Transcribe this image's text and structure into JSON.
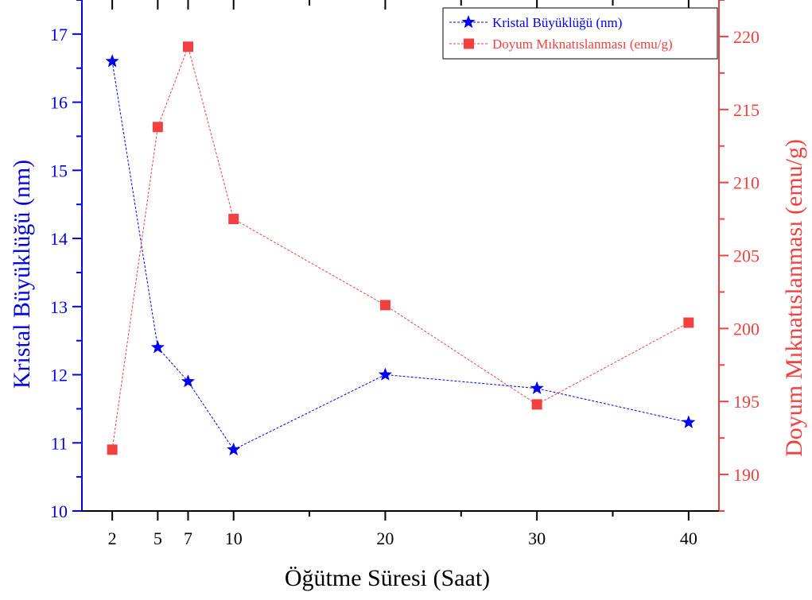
{
  "chart_data": {
    "type": "line",
    "title": "",
    "xlabel": "Öğütme Süresi (Saat)",
    "ylabel_left": "Kristal Büyüklüğü (nm)",
    "ylabel_right": "Doyum Mıknatıslanması (emu/g)",
    "x_ticks": [
      2,
      5,
      7,
      10,
      20,
      30,
      40
    ],
    "x_tick_labels": [
      "2",
      "5",
      "7",
      "10",
      "20",
      "30",
      "40"
    ],
    "xlim": [
      0,
      42
    ],
    "ylim_left": [
      10,
      17.5
    ],
    "ylim_right": [
      187.5,
      222.5
    ],
    "left_ticks": [
      "10",
      "11",
      "12",
      "13",
      "14",
      "15",
      "16",
      "17"
    ],
    "right_ticks": [
      "190",
      "195",
      "200",
      "205",
      "210",
      "215",
      "220"
    ],
    "legend_position": "top-right",
    "series": [
      {
        "name": "Kristal Büyüklüğü (nm)",
        "axis": "left",
        "marker": "star",
        "color": "#0000ee",
        "x": [
          2,
          5,
          7,
          10,
          20,
          30,
          40
        ],
        "values": [
          16.6,
          12.4,
          11.9,
          10.9,
          12.0,
          11.8,
          11.3
        ]
      },
      {
        "name": "Doyum Mıknatıslanması (emu/g)",
        "axis": "right",
        "marker": "square",
        "color": "#f04040",
        "x": [
          2,
          5,
          7,
          10,
          20,
          30,
          40
        ],
        "values": [
          191.7,
          213.8,
          219.3,
          207.5,
          201.6,
          194.8,
          200.4
        ]
      }
    ]
  },
  "colors": {
    "left_axis": "#0000ee",
    "right_axis": "#f04040",
    "bottom_axis": "#000000"
  }
}
